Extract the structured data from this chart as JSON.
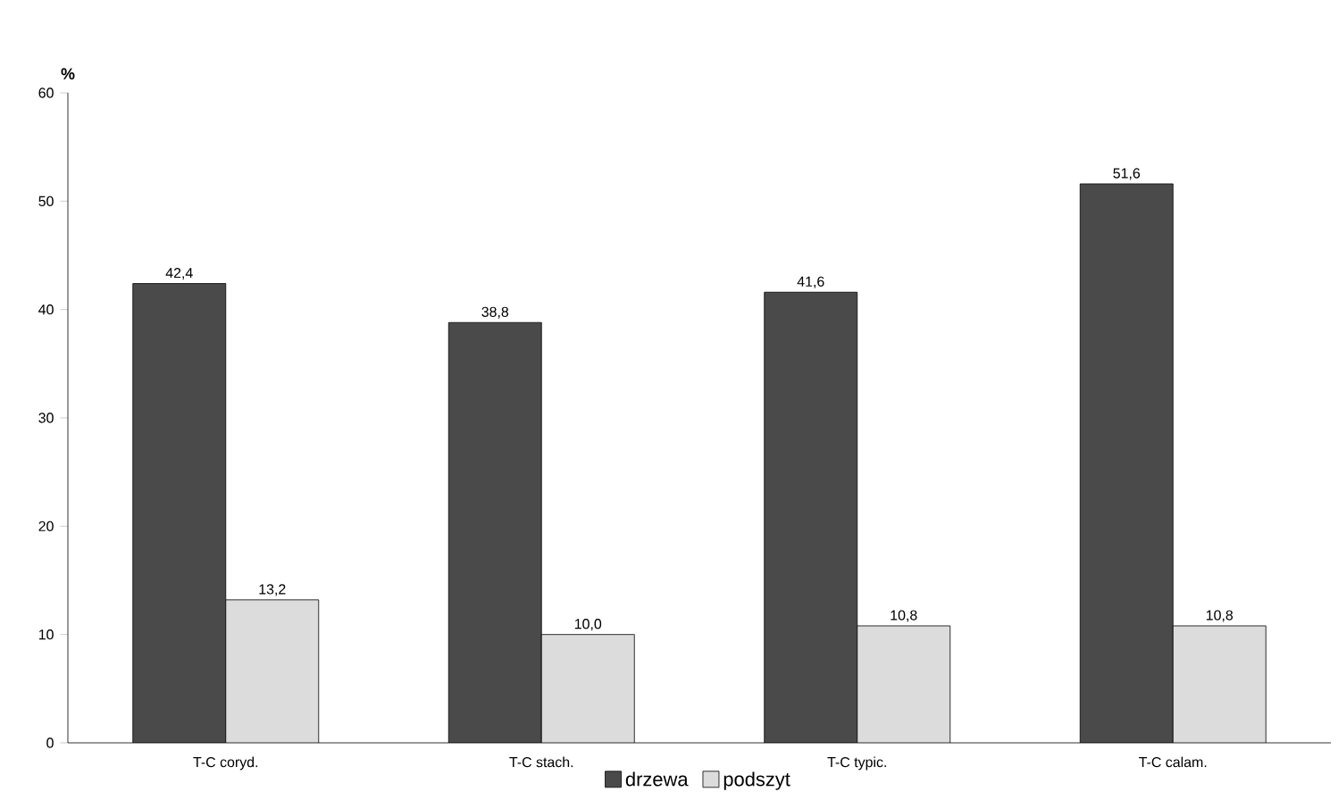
{
  "chart_data": {
    "type": "bar",
    "ylabel": "%",
    "categories": [
      "T-C coryd.",
      "T-C stach.",
      "T-C typic.",
      "T-C calam."
    ],
    "series": [
      {
        "name": "drzewa",
        "color": "#4a4a4a",
        "values": [
          42.4,
          38.8,
          41.6,
          51.6
        ],
        "value_labels": [
          "42,4",
          "38,8",
          "41,6",
          "51,6"
        ]
      },
      {
        "name": "podszyt",
        "color": "#dcdcdc",
        "values": [
          13.2,
          10.0,
          10.8,
          10.8
        ],
        "value_labels": [
          "13,2",
          "10,0",
          "10,8",
          "10,8"
        ]
      }
    ],
    "ylim": [
      0,
      60
    ],
    "yticks": [
      0,
      10,
      20,
      30,
      40,
      50,
      60
    ],
    "legend": "bottom"
  }
}
